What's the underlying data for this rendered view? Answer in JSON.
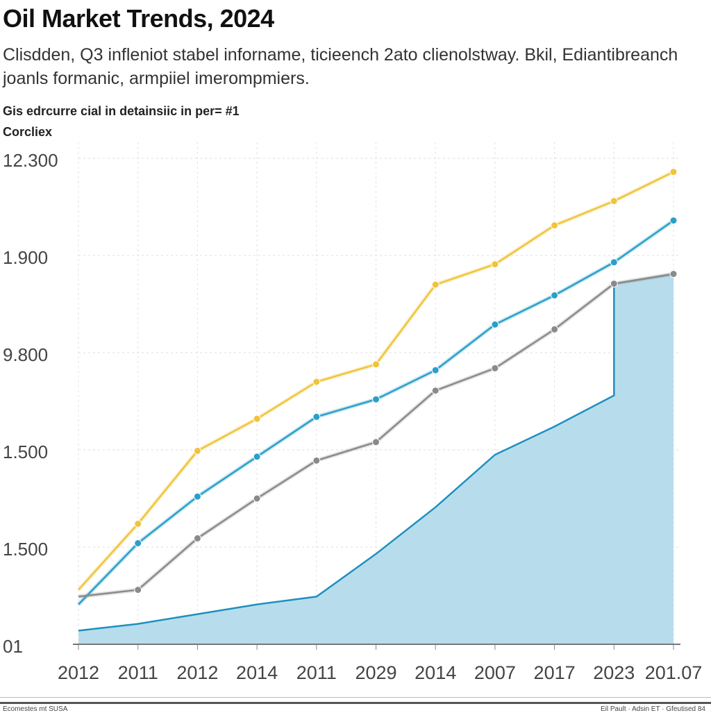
{
  "header": {
    "title": "Oil Market Trends, 2024",
    "subtitle": "Clisdden, Q3 infleniot stabel inforname, ticieench 2ato clienolstway. Bkil, Ediantibreanch joanls formanic, armpiiel imerompmiers.",
    "note": "Gis edrcurre cial in detainsiic in per= #1",
    "unit_label": "Corcliex"
  },
  "footer": {
    "source": "Ecomestes mt SUSA",
    "credit": "Eil Pault · Adsin ET · Gfeutised 84"
  },
  "chart_data": {
    "type": "line",
    "title": "Oil Market Trends, 2024",
    "categories": [
      "2012",
      "2011",
      "2012",
      "2014",
      "2011",
      "2029",
      "2014",
      "2007",
      "2017",
      "2023",
      "201.07"
    ],
    "y_ticks": [
      {
        "value": 0,
        "label": "01"
      },
      {
        "value": 1,
        "label": "1.500"
      },
      {
        "value": 2,
        "label": "1.500"
      },
      {
        "value": 3,
        "label": "9.800"
      },
      {
        "value": 4,
        "label": "1.900"
      },
      {
        "value": 5,
        "label": "12.300"
      }
    ],
    "ylim": [
      0,
      5
    ],
    "grid": true,
    "legend": "none",
    "colors": {
      "yellow": "#f0c43a",
      "blue": "#2a9fc9",
      "gray": "#8a8a8a",
      "area_fill": "#b3dbeb",
      "area_stroke": "#1f8fbf"
    },
    "series": [
      {
        "color": "#f0c43a",
        "kind": "line",
        "values": [
          0.56,
          1.24,
          1.99,
          2.32,
          2.7,
          2.88,
          3.7,
          3.91,
          4.31,
          4.56,
          4.86
        ]
      },
      {
        "color": "#2a9fc9",
        "kind": "line",
        "values": [
          0.41,
          1.04,
          1.52,
          1.93,
          2.34,
          2.52,
          2.82,
          3.29,
          3.59,
          3.93,
          4.36
        ]
      },
      {
        "color": "#8a8a8a",
        "kind": "line",
        "values": [
          0.49,
          0.56,
          1.09,
          1.5,
          1.89,
          2.08,
          2.61,
          2.84,
          3.24,
          3.71,
          3.81
        ]
      },
      {
        "color": "#1f8fbf",
        "kind": "area",
        "values": [
          0.14,
          0.21,
          0.31,
          0.41,
          0.49,
          0.93,
          1.41,
          1.95,
          2.24,
          3.71,
          3.81
        ],
        "pre_jump_value_at_2023": 2.56
      }
    ]
  }
}
